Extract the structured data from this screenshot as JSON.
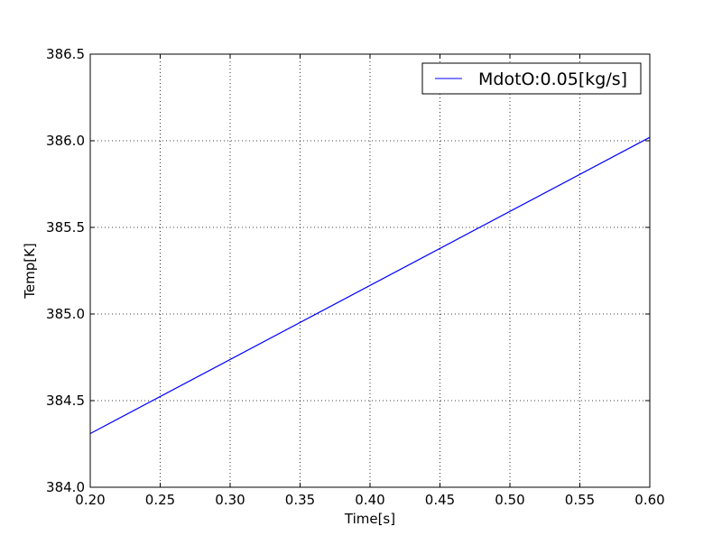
{
  "chart_data": {
    "type": "line",
    "title": "",
    "xlabel": "Time[s]",
    "ylabel": "Temp[K]",
    "xlim": [
      0.2,
      0.6
    ],
    "ylim": [
      384.0,
      386.5
    ],
    "x_ticks": [
      0.2,
      0.25,
      0.3,
      0.35,
      0.4,
      0.45,
      0.5,
      0.55,
      0.6
    ],
    "x_tick_labels": [
      "0.20",
      "0.25",
      "0.30",
      "0.35",
      "0.40",
      "0.45",
      "0.50",
      "0.55",
      "0.60"
    ],
    "y_ticks": [
      384.0,
      384.5,
      385.0,
      385.5,
      386.0,
      386.5
    ],
    "y_tick_labels": [
      "384.0",
      "384.5",
      "385.0",
      "385.5",
      "386.0",
      "386.5"
    ],
    "grid": true,
    "legend_position": "top-right",
    "series": [
      {
        "name": "MdotO:0.05[kg/s]",
        "color": "#0000ff",
        "x": [
          0.2,
          0.6
        ],
        "y": [
          384.31,
          386.02
        ]
      }
    ]
  }
}
